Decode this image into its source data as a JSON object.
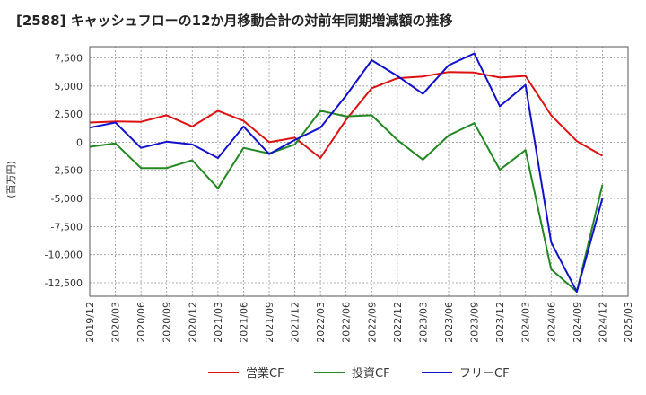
{
  "title": "[2588]  キャッシュフローの12か月移動合計の対前年同期増減額の推移",
  "chart_data": {
    "type": "line",
    "ylabel": "(百万円)",
    "ylim": [
      -13700,
      8500
    ],
    "yticks": [
      7500,
      5000,
      2500,
      0,
      -2500,
      -5000,
      -7500,
      -10000,
      -12500
    ],
    "ytick_labels": [
      "7,500",
      "5,000",
      "2,500",
      "0",
      "-2,500",
      "-5,000",
      "-7,500",
      "-10,000",
      "-12,500"
    ],
    "x": [
      "2019/12",
      "2020/03",
      "2020/06",
      "2020/09",
      "2020/12",
      "2021/03",
      "2021/06",
      "2021/09",
      "2021/12",
      "2022/03",
      "2022/06",
      "2022/09",
      "2022/12",
      "2023/03",
      "2023/06",
      "2023/09",
      "2023/12",
      "2024/03",
      "2024/06",
      "2024/09",
      "2024/12"
    ],
    "xtick_labels": [
      "2019/12",
      "2020/03",
      "2020/06",
      "2020/09",
      "2020/12",
      "2021/03",
      "2021/06",
      "2021/09",
      "2021/12",
      "2022/03",
      "2022/06",
      "2022/09",
      "2022/12",
      "2023/03",
      "2023/06",
      "2023/09",
      "2023/12",
      "2024/03",
      "2024/06",
      "2024/09",
      "2024/12",
      "2025/03"
    ],
    "grid": true,
    "legend_position": "bottom",
    "series": [
      {
        "name": "営業CF",
        "color": "#dd1111",
        "values": [
          1750,
          1850,
          1820,
          2400,
          1400,
          2800,
          1900,
          0,
          400,
          -1400,
          2000,
          4800,
          5700,
          5850,
          6250,
          6200,
          5750,
          5900,
          2400,
          100,
          -1200
        ]
      },
      {
        "name": "投資CF",
        "color": "#228822",
        "values": [
          -400,
          -100,
          -2300,
          -2300,
          -1600,
          -4100,
          -500,
          -1000,
          -200,
          2800,
          2300,
          2400,
          200,
          -1550,
          600,
          1700,
          -2450,
          -700,
          -11300,
          -13300,
          -3800
        ]
      },
      {
        "name": "フリーCF",
        "color": "#1111cc",
        "values": [
          1300,
          1750,
          -500,
          50,
          -200,
          -1400,
          1400,
          -1050,
          200,
          1300,
          4150,
          7300,
          5900,
          4300,
          6850,
          7900,
          3200,
          5100,
          -8900,
          -13300,
          -5000
        ]
      }
    ]
  }
}
